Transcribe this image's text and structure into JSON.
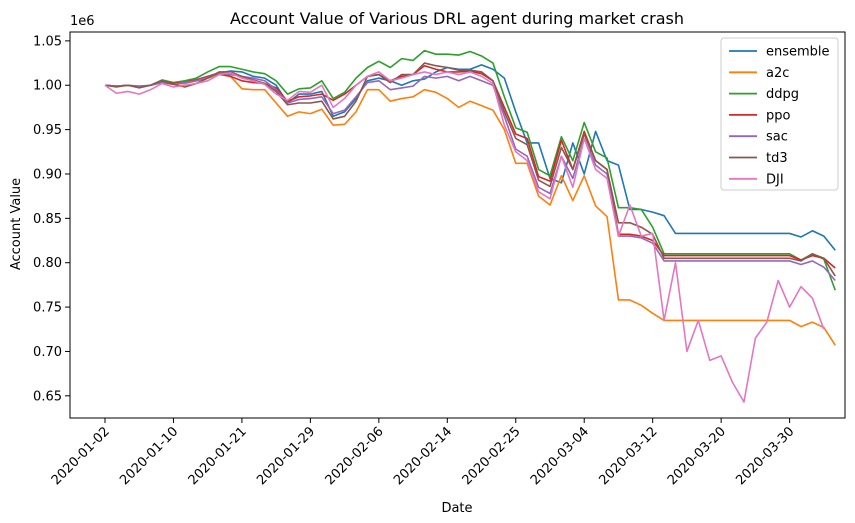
{
  "chart_data": {
    "type": "line",
    "title": "Account Value of Various DRL agent during market crash",
    "xlabel": "Date",
    "ylabel": "Account Value",
    "y_scale_label": "1e6",
    "x_tick_labels": [
      "2020-01-02",
      "2020-01-10",
      "2020-01-21",
      "2020-01-29",
      "2020-02-06",
      "2020-02-14",
      "2020-02-25",
      "2020-03-04",
      "2020-03-12",
      "2020-03-20",
      "2020-03-30"
    ],
    "x_tick_index": [
      0,
      6,
      12,
      18,
      24,
      30,
      36,
      42,
      48,
      54,
      60
    ],
    "ylim": [
      0.625,
      1.06
    ],
    "y_ticks": [
      0.65,
      0.7,
      0.75,
      0.8,
      0.85,
      0.9,
      0.95,
      1.0,
      1.05
    ],
    "y_tick_labels": [
      "0.65",
      "0.70",
      "0.75",
      "0.80",
      "0.85",
      "0.90",
      "0.95",
      "1.00",
      "1.05"
    ],
    "legend_position": "top-right",
    "grid": false,
    "series": [
      {
        "name": "ensemble",
        "color": "#1f77b4",
        "values": [
          1.0,
          0.999,
          1.0,
          0.999,
          1.0,
          1.005,
          1.002,
          1.004,
          1.006,
          1.01,
          1.014,
          1.016,
          1.015,
          1.01,
          1.008,
          1.0,
          0.98,
          0.99,
          0.99,
          0.993,
          0.965,
          0.97,
          0.985,
          1.005,
          1.008,
          1.005,
          1.0,
          1.005,
          1.007,
          1.015,
          1.02,
          1.018,
          1.018,
          1.023,
          1.018,
          1.008,
          0.97,
          0.935,
          0.935,
          0.895,
          0.89,
          0.935,
          0.9,
          0.948,
          0.915,
          0.91,
          0.86,
          0.86,
          0.857,
          0.853,
          0.833,
          0.833,
          0.833,
          0.833,
          0.833,
          0.833,
          0.833,
          0.833,
          0.833,
          0.833,
          0.833,
          0.829,
          0.836,
          0.83,
          0.814
        ]
      },
      {
        "name": "a2c",
        "color": "#ff7f0e",
        "values": [
          1.0,
          0.999,
          1.0,
          0.998,
          1.0,
          1.003,
          1.001,
          1.002,
          1.005,
          1.008,
          1.012,
          1.01,
          0.996,
          0.995,
          0.995,
          0.98,
          0.965,
          0.97,
          0.968,
          0.973,
          0.955,
          0.956,
          0.97,
          0.995,
          0.995,
          0.982,
          0.985,
          0.987,
          0.995,
          0.992,
          0.985,
          0.975,
          0.982,
          0.977,
          0.972,
          0.95,
          0.912,
          0.912,
          0.875,
          0.865,
          0.898,
          0.87,
          0.898,
          0.864,
          0.852,
          0.758,
          0.758,
          0.752,
          0.743,
          0.735,
          0.735,
          0.735,
          0.735,
          0.735,
          0.735,
          0.735,
          0.735,
          0.735,
          0.735,
          0.735,
          0.735,
          0.728,
          0.733,
          0.727,
          0.707
        ]
      },
      {
        "name": "ddpg",
        "color": "#2ca02c",
        "values": [
          1.0,
          0.999,
          1.0,
          0.998,
          1.0,
          1.006,
          1.003,
          1.005,
          1.008,
          1.015,
          1.021,
          1.021,
          1.018,
          1.015,
          1.013,
          1.005,
          0.99,
          0.996,
          0.997,
          1.005,
          0.985,
          0.992,
          1.008,
          1.02,
          1.027,
          1.02,
          1.03,
          1.028,
          1.039,
          1.035,
          1.035,
          1.034,
          1.038,
          1.033,
          1.025,
          0.987,
          0.952,
          0.947,
          0.905,
          0.898,
          0.942,
          0.915,
          0.958,
          0.925,
          0.918,
          0.862,
          0.862,
          0.86,
          0.84,
          0.81,
          0.81,
          0.81,
          0.81,
          0.81,
          0.81,
          0.81,
          0.81,
          0.81,
          0.81,
          0.81,
          0.81,
          0.803,
          0.81,
          0.804,
          0.769
        ]
      },
      {
        "name": "ppo",
        "color": "#d62728",
        "values": [
          1.0,
          0.999,
          1.0,
          0.998,
          1.0,
          1.004,
          1.002,
          1.003,
          1.006,
          1.01,
          1.013,
          1.01,
          1.005,
          1.003,
          1.002,
          0.997,
          0.982,
          0.987,
          0.988,
          0.99,
          0.983,
          0.99,
          1.0,
          1.01,
          1.012,
          1.005,
          1.01,
          1.012,
          1.022,
          1.018,
          1.015,
          1.015,
          1.016,
          1.013,
          1.005,
          0.975,
          0.945,
          0.94,
          0.897,
          0.892,
          0.938,
          0.905,
          0.948,
          0.915,
          0.905,
          0.832,
          0.832,
          0.83,
          0.825,
          0.808,
          0.808,
          0.808,
          0.808,
          0.808,
          0.808,
          0.808,
          0.808,
          0.808,
          0.808,
          0.808,
          0.808,
          0.803,
          0.808,
          0.805,
          0.794
        ]
      },
      {
        "name": "sac",
        "color": "#9467bd",
        "values": [
          1.0,
          0.999,
          1.0,
          0.998,
          1.0,
          1.003,
          1.001,
          1.003,
          1.005,
          1.009,
          1.014,
          1.012,
          1.01,
          1.008,
          1.005,
          0.995,
          0.98,
          0.984,
          0.985,
          0.987,
          0.968,
          0.972,
          0.987,
          1.003,
          1.005,
          0.995,
          0.997,
          0.999,
          1.01,
          1.008,
          1.01,
          1.005,
          1.01,
          1.005,
          1.0,
          0.965,
          0.928,
          0.92,
          0.885,
          0.878,
          0.92,
          0.895,
          0.94,
          0.91,
          0.9,
          0.83,
          0.83,
          0.828,
          0.822,
          0.802,
          0.802,
          0.802,
          0.802,
          0.802,
          0.802,
          0.802,
          0.802,
          0.802,
          0.802,
          0.802,
          0.802,
          0.798,
          0.802,
          0.795,
          0.78
        ]
      },
      {
        "name": "td3",
        "color": "#8c564b",
        "values": [
          1.0,
          0.998,
          1.0,
          0.997,
          1.0,
          1.005,
          1.001,
          0.998,
          1.002,
          1.008,
          1.015,
          1.015,
          1.01,
          1.006,
          1.002,
          0.993,
          0.978,
          0.98,
          0.98,
          0.982,
          0.962,
          0.965,
          0.982,
          1.01,
          1.012,
          1.003,
          1.012,
          1.012,
          1.025,
          1.022,
          1.02,
          1.017,
          1.017,
          1.015,
          1.005,
          0.97,
          0.94,
          0.933,
          0.893,
          0.886,
          0.93,
          0.905,
          0.945,
          0.915,
          0.905,
          0.845,
          0.845,
          0.84,
          0.832,
          0.805,
          0.805,
          0.805,
          0.805,
          0.805,
          0.805,
          0.805,
          0.805,
          0.805,
          0.805,
          0.805,
          0.805,
          0.802,
          0.81,
          0.805,
          0.785
        ]
      },
      {
        "name": "DJI",
        "color": "#e377c2",
        "values": [
          1.0,
          0.991,
          0.993,
          0.99,
          0.995,
          1.002,
          0.998,
          1.0,
          1.002,
          1.005,
          1.012,
          1.014,
          1.008,
          1.005,
          1.001,
          0.99,
          0.983,
          0.993,
          0.992,
          1.0,
          0.975,
          0.985,
          1.0,
          1.01,
          1.015,
          1.005,
          1.008,
          1.012,
          1.015,
          1.012,
          1.015,
          1.012,
          1.015,
          1.01,
          1.002,
          0.955,
          0.925,
          0.915,
          0.88,
          0.872,
          0.92,
          0.885,
          0.94,
          0.905,
          0.895,
          0.83,
          0.865,
          0.83,
          0.833,
          0.735,
          0.8,
          0.7,
          0.735,
          0.69,
          0.695,
          0.665,
          0.643,
          0.715,
          0.733,
          0.78,
          0.75,
          0.773,
          0.76,
          0.725
        ]
      }
    ]
  }
}
